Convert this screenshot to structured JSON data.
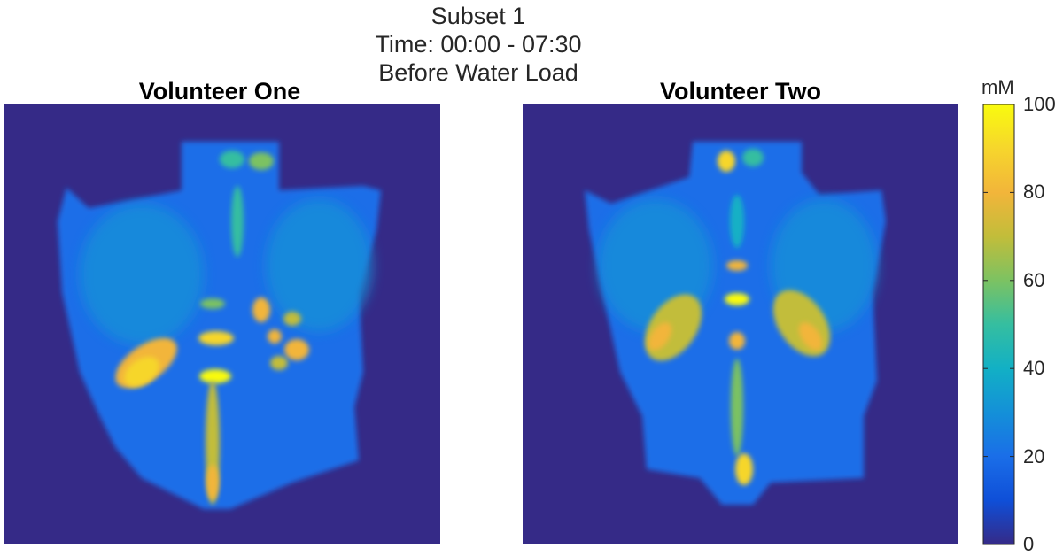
{
  "title_lines": [
    "Subset 1",
    "Time: 00:00 - 07:30",
    "Before Water Load"
  ],
  "chart_data": {
    "type": "heatmap",
    "panels": [
      {
        "title": "Volunteer One"
      },
      {
        "title": "Volunteer Two"
      }
    ],
    "colormap": "parula",
    "colorbar": {
      "label": "mM",
      "range": [
        0,
        100
      ],
      "ticks": [
        0,
        20,
        40,
        60,
        80,
        100
      ],
      "tick_labels": [
        "0",
        "20",
        "40",
        "60",
        "80",
        "100"
      ]
    },
    "colors": {
      "background": "#352a87",
      "low": "#352a87",
      "high": "#f9fb0e"
    }
  }
}
